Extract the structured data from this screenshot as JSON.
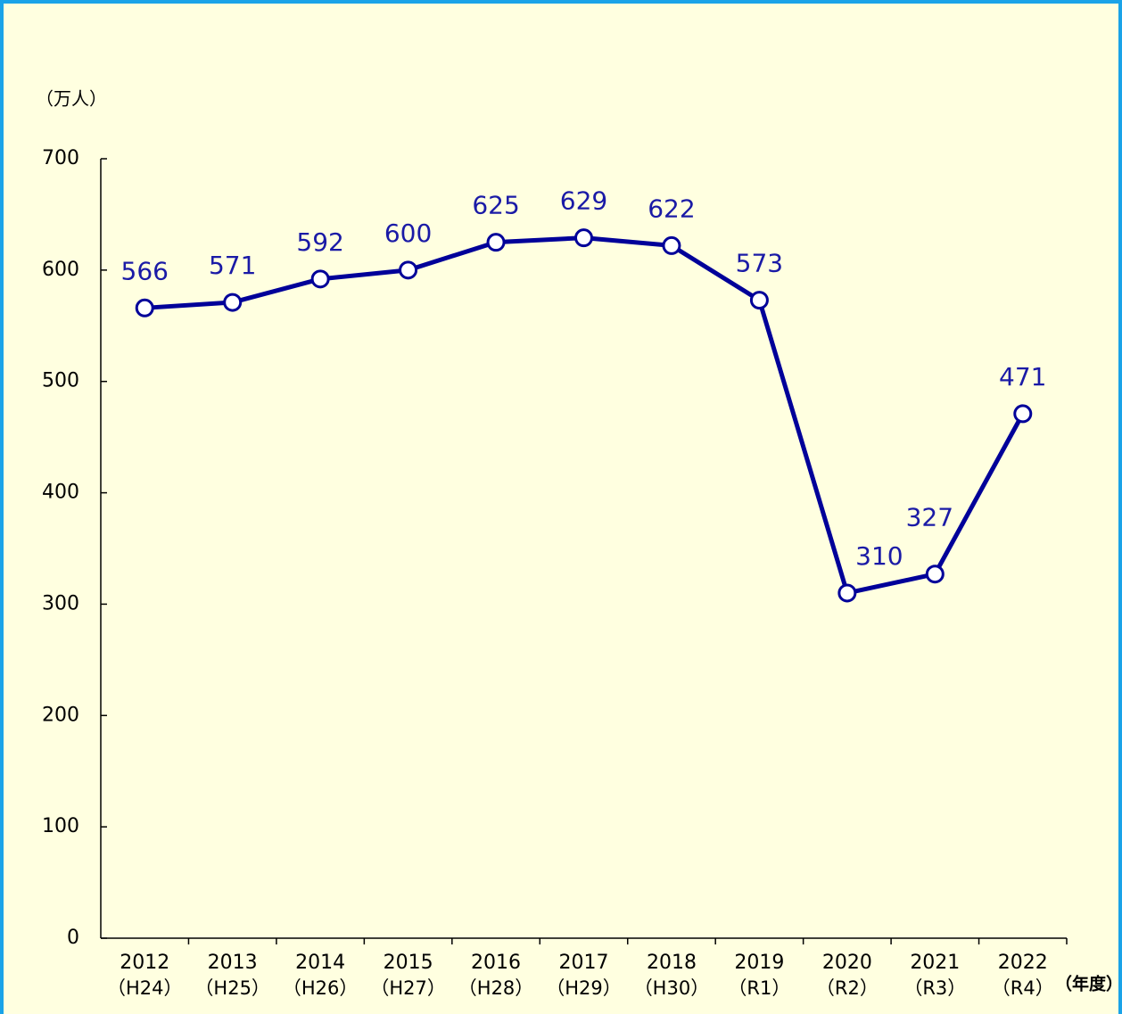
{
  "chart_data": {
    "type": "line",
    "y_axis_label": "（万人）",
    "x_axis_label": "（年度）",
    "categories": [
      "2012",
      "2013",
      "2014",
      "2015",
      "2016",
      "2017",
      "2018",
      "2019",
      "2020",
      "2021",
      "2022"
    ],
    "category_sublabels": [
      "（H24）",
      "（H25）",
      "（H26）",
      "（H27）",
      "（H28）",
      "（H29）",
      "（H30）",
      "（R1）",
      "（R2）",
      "（R3）",
      "（R4）"
    ],
    "values": [
      566,
      571,
      592,
      600,
      625,
      629,
      622,
      573,
      310,
      327,
      471
    ],
    "color": "#000099",
    "label_color": "#1a1aa6",
    "ylim": [
      0,
      700
    ],
    "yticks": [
      0,
      100,
      200,
      300,
      400,
      500,
      600,
      700
    ]
  }
}
